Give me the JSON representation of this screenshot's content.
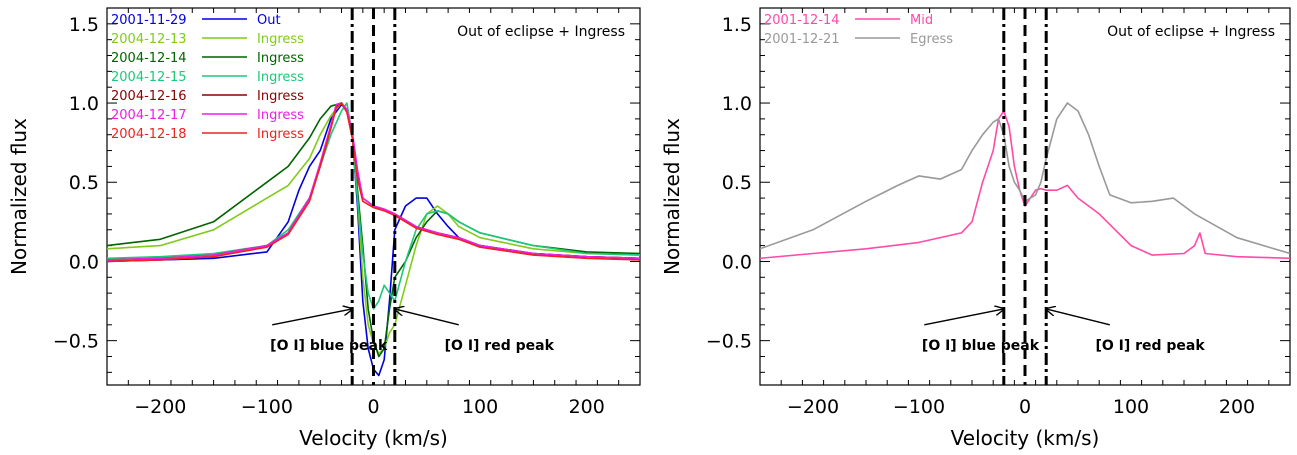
{
  "chart_data": [
    {
      "type": "line",
      "panel": "left",
      "title": "Out of eclipse + Ingress",
      "xlabel": "Velocity (km/s)",
      "ylabel": "Normalized flux",
      "xlim": [
        -250,
        250
      ],
      "ylim": [
        -0.78,
        1.6
      ],
      "xticks": [
        -200,
        -100,
        0,
        100,
        200
      ],
      "yticks": [
        -0.5,
        0.0,
        0.5,
        1.0,
        1.5
      ],
      "xtick_labels": [
        "−200",
        "−100",
        "0",
        "100",
        "200"
      ],
      "ytick_labels": [
        "−0.5",
        "0.0",
        "0.5",
        "1.0",
        "1.5"
      ],
      "grid": false,
      "legend_position": "top-left",
      "vlines": [
        {
          "x": -20,
          "style": "dashdot"
        },
        {
          "x": 0,
          "style": "dashed"
        },
        {
          "x": 20,
          "style": "dashdot"
        }
      ],
      "annotations": [
        {
          "text": "[O I] blue peak",
          "x": -42,
          "y": -0.56,
          "arrow_from": [
            -95,
            -0.4
          ],
          "arrow_to": [
            -20,
            -0.3
          ]
        },
        {
          "text": "[O I] red peak",
          "x": 118,
          "y": -0.56,
          "arrow_from": [
            80,
            -0.4
          ],
          "arrow_to": [
            20,
            -0.3
          ]
        }
      ],
      "series": [
        {
          "name": "2001-11-29",
          "label": "Out",
          "color": "#0000dd",
          "x": [
            -250,
            -200,
            -150,
            -100,
            -80,
            -70,
            -60,
            -50,
            -40,
            -30,
            -25,
            -20,
            -15,
            -10,
            -5,
            0,
            5,
            10,
            15,
            20,
            30,
            40,
            50,
            60,
            70,
            80,
            100,
            150,
            200,
            250
          ],
          "y": [
            0.0,
            0.01,
            0.02,
            0.06,
            0.25,
            0.45,
            0.6,
            0.7,
            0.9,
            0.99,
            0.96,
            0.8,
            0.35,
            -0.25,
            -0.55,
            -0.68,
            -0.72,
            -0.62,
            -0.25,
            0.2,
            0.35,
            0.4,
            0.4,
            0.3,
            0.22,
            0.15,
            0.1,
            0.05,
            0.03,
            0.02
          ]
        },
        {
          "name": "2004-12-13",
          "label": "Ingress",
          "color": "#7fcc1a",
          "x": [
            -250,
            -200,
            -150,
            -100,
            -80,
            -60,
            -50,
            -40,
            -30,
            -25,
            -20,
            -15,
            -10,
            -5,
            0,
            5,
            10,
            15,
            20,
            30,
            40,
            50,
            60,
            70,
            80,
            100,
            150,
            200,
            250
          ],
          "y": [
            0.08,
            0.1,
            0.2,
            0.4,
            0.48,
            0.65,
            0.8,
            0.92,
            1.0,
            0.95,
            0.8,
            0.4,
            -0.1,
            -0.4,
            -0.52,
            -0.58,
            -0.55,
            -0.45,
            -0.4,
            -0.15,
            0.1,
            0.3,
            0.35,
            0.3,
            0.22,
            0.15,
            0.08,
            0.05,
            0.04
          ]
        },
        {
          "name": "2004-12-14",
          "label": "Ingress",
          "color": "#006400",
          "x": [
            -250,
            -200,
            -150,
            -100,
            -80,
            -60,
            -50,
            -40,
            -30,
            -25,
            -20,
            -15,
            -10,
            -5,
            0,
            5,
            10,
            15,
            20,
            30,
            40,
            50,
            60,
            70,
            80,
            100,
            150,
            200,
            250
          ],
          "y": [
            0.1,
            0.14,
            0.25,
            0.5,
            0.6,
            0.78,
            0.9,
            0.98,
            1.0,
            0.95,
            0.8,
            0.45,
            0.1,
            -0.3,
            -0.5,
            -0.6,
            -0.55,
            -0.3,
            -0.1,
            0.0,
            0.15,
            0.25,
            0.32,
            0.3,
            0.25,
            0.18,
            0.1,
            0.06,
            0.05
          ]
        },
        {
          "name": "2004-12-15",
          "label": "Ingress",
          "color": "#1ec87a",
          "x": [
            -250,
            -200,
            -150,
            -100,
            -80,
            -60,
            -50,
            -40,
            -30,
            -25,
            -20,
            -15,
            -10,
            -5,
            0,
            5,
            10,
            15,
            20,
            30,
            40,
            50,
            60,
            70,
            80,
            100,
            150,
            200,
            250
          ],
          "y": [
            0.02,
            0.03,
            0.05,
            0.1,
            0.2,
            0.4,
            0.6,
            0.8,
            0.95,
            1.0,
            0.8,
            0.4,
            0.05,
            -0.2,
            -0.3,
            -0.25,
            -0.15,
            -0.2,
            -0.25,
            0.0,
            0.2,
            0.3,
            0.32,
            0.3,
            0.25,
            0.18,
            0.1,
            0.05,
            0.04
          ]
        },
        {
          "name": "2004-12-16",
          "label": "Ingress",
          "color": "#8b0000",
          "x": [
            -250,
            -200,
            -150,
            -100,
            -80,
            -60,
            -50,
            -40,
            -35,
            -30,
            -25,
            -20,
            -15,
            -10,
            0,
            10,
            20,
            30,
            40,
            50,
            60,
            80,
            100,
            150,
            200,
            250
          ],
          "y": [
            0.01,
            0.02,
            0.04,
            0.1,
            0.18,
            0.4,
            0.6,
            0.85,
            0.98,
            1.0,
            0.95,
            0.8,
            0.55,
            0.4,
            0.35,
            0.33,
            0.3,
            0.26,
            0.22,
            0.2,
            0.18,
            0.15,
            0.1,
            0.05,
            0.03,
            0.02
          ]
        },
        {
          "name": "2004-12-17",
          "label": "Ingress",
          "color": "#ee1ee6",
          "x": [
            -250,
            -200,
            -150,
            -100,
            -80,
            -60,
            -50,
            -40,
            -35,
            -30,
            -25,
            -20,
            -15,
            -10,
            0,
            10,
            20,
            30,
            40,
            50,
            60,
            80,
            100,
            150,
            200,
            250
          ],
          "y": [
            0.01,
            0.02,
            0.04,
            0.1,
            0.18,
            0.4,
            0.62,
            0.86,
            0.99,
            1.0,
            0.96,
            0.82,
            0.58,
            0.4,
            0.35,
            0.33,
            0.3,
            0.26,
            0.22,
            0.2,
            0.18,
            0.15,
            0.1,
            0.05,
            0.03,
            0.02
          ]
        },
        {
          "name": "2004-12-18",
          "label": "Ingress",
          "color": "#ee2222",
          "x": [
            -250,
            -200,
            -150,
            -100,
            -80,
            -60,
            -50,
            -40,
            -35,
            -30,
            -25,
            -20,
            -15,
            -10,
            0,
            10,
            20,
            30,
            40,
            50,
            60,
            80,
            100,
            150,
            200,
            250
          ],
          "y": [
            0.0,
            0.01,
            0.03,
            0.09,
            0.17,
            0.38,
            0.6,
            0.84,
            0.97,
            1.0,
            0.94,
            0.78,
            0.52,
            0.38,
            0.34,
            0.32,
            0.29,
            0.25,
            0.21,
            0.19,
            0.17,
            0.14,
            0.09,
            0.04,
            0.02,
            0.01
          ]
        }
      ]
    },
    {
      "type": "line",
      "panel": "right",
      "title": "Out of eclipse + Ingress",
      "xlabel": "Velocity (km/s)",
      "ylabel": "Normalized flux",
      "xlim": [
        -250,
        250
      ],
      "ylim": [
        -0.78,
        1.6
      ],
      "xticks": [
        -200,
        -100,
        0,
        100,
        200
      ],
      "yticks": [
        -0.5,
        0.0,
        0.5,
        1.0,
        1.5
      ],
      "xtick_labels": [
        "−200",
        "−100",
        "0",
        "100",
        "200"
      ],
      "ytick_labels": [
        "−0.5",
        "0.0",
        "0.5",
        "1.0",
        "1.5"
      ],
      "grid": false,
      "legend_position": "top-left",
      "vlines": [
        {
          "x": -20,
          "style": "dashdot"
        },
        {
          "x": 0,
          "style": "dashed"
        },
        {
          "x": 20,
          "style": "dashdot"
        }
      ],
      "annotations": [
        {
          "text": "[O I] blue peak",
          "x": -42,
          "y": -0.56,
          "arrow_from": [
            -95,
            -0.4
          ],
          "arrow_to": [
            -20,
            -0.3
          ]
        },
        {
          "text": "[O I] red peak",
          "x": 118,
          "y": -0.56,
          "arrow_from": [
            80,
            -0.4
          ],
          "arrow_to": [
            20,
            -0.3
          ]
        }
      ],
      "series": [
        {
          "name": "2001-12-14",
          "label": "Mid",
          "color": "#ff4aa8",
          "x": [
            -250,
            -200,
            -150,
            -100,
            -60,
            -50,
            -40,
            -30,
            -25,
            -20,
            -15,
            -10,
            -5,
            0,
            5,
            10,
            15,
            20,
            30,
            40,
            50,
            70,
            100,
            120,
            150,
            160,
            165,
            170,
            200,
            250
          ],
          "y": [
            0.02,
            0.05,
            0.08,
            0.12,
            0.18,
            0.25,
            0.5,
            0.7,
            0.9,
            0.95,
            0.85,
            0.6,
            0.45,
            0.35,
            0.4,
            0.45,
            0.46,
            0.45,
            0.45,
            0.48,
            0.4,
            0.3,
            0.1,
            0.04,
            0.05,
            0.1,
            0.18,
            0.05,
            0.03,
            0.02
          ]
        },
        {
          "name": "2001-12-21",
          "label": "Egress",
          "color": "#999999",
          "x": [
            -250,
            -200,
            -150,
            -120,
            -100,
            -80,
            -60,
            -50,
            -40,
            -30,
            -25,
            -20,
            -15,
            -10,
            -5,
            0,
            5,
            10,
            15,
            20,
            30,
            40,
            50,
            60,
            70,
            80,
            100,
            120,
            140,
            160,
            200,
            250
          ],
          "y": [
            0.08,
            0.2,
            0.38,
            0.48,
            0.54,
            0.52,
            0.58,
            0.7,
            0.8,
            0.88,
            0.9,
            0.8,
            0.6,
            0.5,
            0.45,
            0.38,
            0.4,
            0.42,
            0.5,
            0.65,
            0.9,
            1.0,
            0.95,
            0.8,
            0.6,
            0.42,
            0.37,
            0.38,
            0.4,
            0.3,
            0.15,
            0.05
          ]
        }
      ]
    }
  ]
}
